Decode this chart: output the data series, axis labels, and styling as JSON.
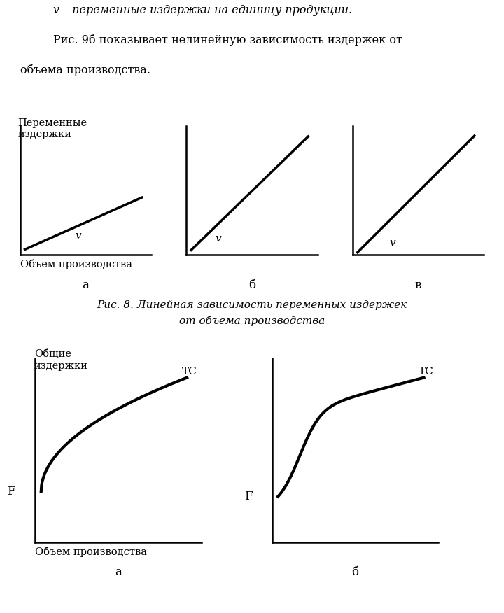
{
  "bg_color": "#ffffff",
  "line_color": "#000000",
  "line_width": 2.5,
  "top_text1": "v – переменные издержки на единицу продукции.",
  "top_text2": "    Рис. 9б показывает нелинейную зависимость издержек от",
  "top_text3": "объема производства.",
  "ylabel_top": "Переменные\nиздержки",
  "xlabel_top": "Объем производства",
  "label_a": "а",
  "label_b": "б",
  "label_v_letter": "в",
  "fig8_caption": "Рис. 8. Линейная зависимость переменных издержек",
  "fig8_caption2": "от объема производства",
  "ylabel_bottom": "Общие\nиздержки",
  "xlabel_bottom": "Объем производства",
  "label_TC": "TC",
  "label_F": "F",
  "label_v_curve": "v"
}
